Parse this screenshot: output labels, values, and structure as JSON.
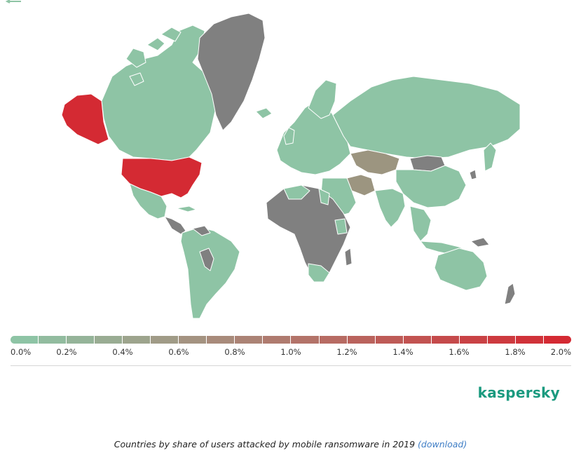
{
  "colors": {
    "low": "#8ec4a5",
    "high": "#d42a33",
    "nodata": "#808080",
    "mid_tan": "#9c9580",
    "link": "#3e7dc5",
    "brand": "#1a9a7f"
  },
  "map": {
    "type": "choropleth world map",
    "highlighted_high": [
      "United States",
      "Alaska"
    ],
    "highlighted_mid": [
      "Kazakhstan",
      "Iran"
    ]
  },
  "legend": {
    "ticks": [
      "0.0%",
      "0.2%",
      "0.4%",
      "0.6%",
      "0.8%",
      "1.0%",
      "1.2%",
      "1.4%",
      "1.6%",
      "1.8%",
      "2.0%"
    ]
  },
  "brand": {
    "name": "kaspersky"
  },
  "caption": {
    "text": "Countries by share of users attacked by mobile ransomware in 2019 ",
    "link": "(download)"
  },
  "icons": {
    "back": "back-arrow-icon"
  }
}
